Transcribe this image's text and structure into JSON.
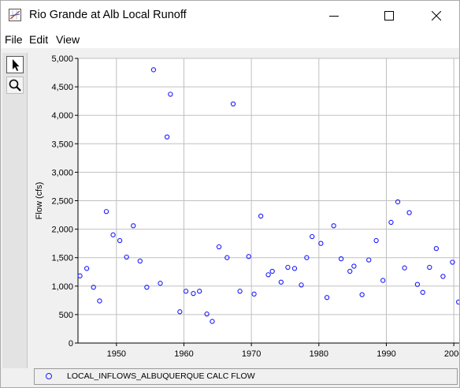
{
  "window": {
    "title": "Rio Grande at Alb Local Runoff"
  },
  "menu": {
    "file": "File",
    "edit": "Edit",
    "view": "View"
  },
  "toolbar": {
    "tools": [
      {
        "name": "pointer-tool",
        "icon": "arrow-cursor-icon",
        "active": true
      },
      {
        "name": "zoom-tool",
        "icon": "magnifier-icon",
        "active": false
      }
    ]
  },
  "colors": {
    "marker": "#1a1aff",
    "grid": "#c0c0c0",
    "plot_bg": "#ffffff"
  },
  "chart_data": {
    "type": "scatter",
    "title": "",
    "xlabel": "",
    "ylabel": "Flow (cfs)",
    "xlim": [
      1944.3,
      2000.8
    ],
    "ylim": [
      0,
      5000
    ],
    "xticks": [
      1950,
      1960,
      1970,
      1980,
      1990,
      2000
    ],
    "xtick_labels": [
      "1950",
      "1960",
      "1970",
      "1980",
      "1990",
      "2000"
    ],
    "yticks": [
      0,
      500,
      1000,
      1500,
      2000,
      2500,
      3000,
      3500,
      4000,
      4500,
      5000
    ],
    "ytick_labels": [
      "0",
      "500",
      "1,000",
      "1,500",
      "2,000",
      "2,500",
      "3,000",
      "3,500",
      "4,000",
      "4,500",
      "5,000"
    ],
    "grid": true,
    "legend_position": "bottom",
    "series": [
      {
        "name": "LOCAL_INFLOWS_ALBUQUERQUE CALC FLOW",
        "x": [
          1944.6,
          1945.6,
          1946.6,
          1947.5,
          1948.5,
          1949.5,
          1950.5,
          1951.5,
          1952.5,
          1953.5,
          1954.5,
          1955.5,
          1956.5,
          1957.5,
          1958.0,
          1959.4,
          1960.3,
          1961.4,
          1962.3,
          1963.4,
          1964.2,
          1965.2,
          1966.4,
          1967.3,
          1968.3,
          1969.6,
          1970.4,
          1971.4,
          1972.5,
          1973.1,
          1974.4,
          1975.4,
          1976.4,
          1977.4,
          1978.2,
          1979.0,
          1980.3,
          1981.2,
          1982.2,
          1983.3,
          1984.6,
          1985.2,
          1986.4,
          1987.4,
          1988.5,
          1989.5,
          1990.7,
          1991.7,
          1992.7,
          1993.4,
          1994.6,
          1995.4,
          1996.4,
          1997.4,
          1998.4,
          1999.8,
          2000.7
        ],
        "y": [
          1180,
          1310,
          980,
          740,
          2310,
          1900,
          1800,
          1510,
          2060,
          1440,
          980,
          4800,
          1050,
          3620,
          4370,
          550,
          910,
          870,
          910,
          510,
          380,
          1690,
          1500,
          4200,
          910,
          1520,
          860,
          2230,
          1200,
          1260,
          1070,
          1330,
          1310,
          1020,
          1500,
          1870,
          1750,
          800,
          2060,
          1480,
          1260,
          1350,
          850,
          1460,
          1800,
          1100,
          2120,
          2480,
          1320,
          2290,
          1030,
          890,
          1330,
          1660,
          1170,
          1420,
          720
        ]
      }
    ]
  }
}
